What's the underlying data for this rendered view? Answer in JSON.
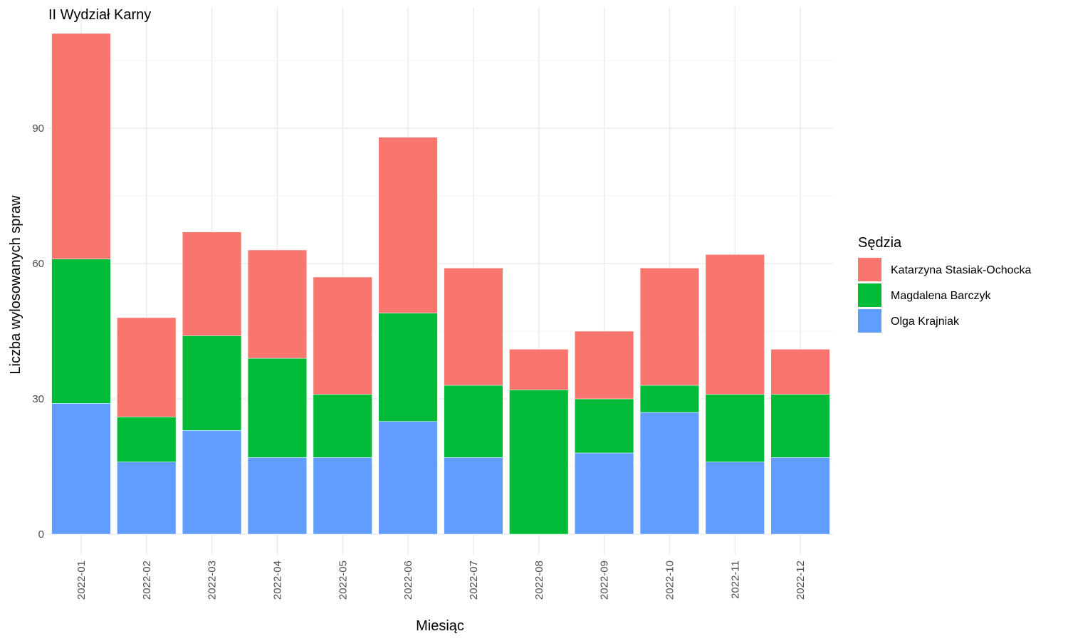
{
  "chart_data": {
    "type": "bar",
    "stacked": true,
    "title": "II Wydział Karny",
    "xlabel": "Miesiąc",
    "ylabel": "Liczba wylosowanych spraw",
    "ylim": [
      0,
      115
    ],
    "yticks": [
      0,
      30,
      60,
      90
    ],
    "grid": true,
    "legend": {
      "title": "Sędzia",
      "position": "right"
    },
    "categories": [
      "2022-01",
      "2022-02",
      "2022-03",
      "2022-04",
      "2022-05",
      "2022-06",
      "2022-07",
      "2022-08",
      "2022-09",
      "2022-10",
      "2022-11",
      "2022-12"
    ],
    "series": [
      {
        "name": "Katarzyna Stasiak-Ochocka",
        "color": "#F8766D",
        "values": [
          50,
          22,
          23,
          24,
          26,
          39,
          26,
          9,
          15,
          26,
          31,
          10
        ]
      },
      {
        "name": "Magdalena Barczyk",
        "color": "#00BA38",
        "values": [
          32,
          10,
          21,
          22,
          14,
          24,
          16,
          32,
          12,
          6,
          15,
          14
        ]
      },
      {
        "name": "Olga Krajniak",
        "color": "#619CFF",
        "values": [
          29,
          16,
          23,
          17,
          17,
          25,
          17,
          0,
          18,
          27,
          16,
          17
        ]
      }
    ]
  }
}
